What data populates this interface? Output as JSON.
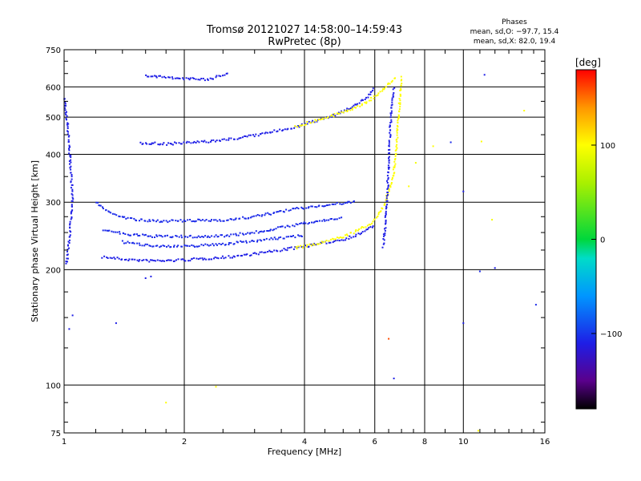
{
  "title": {
    "line1": "Tromsø 20121027 14:58:00–14:59:43",
    "line2": "RwPretec (8p)"
  },
  "stats": {
    "heading": "Phases",
    "line_o": "mean, sd,O: −97.7, 15.4",
    "line_x": "mean, sd,X:  82.0, 19.4"
  },
  "colorbar": {
    "unit_label": "[deg]",
    "ticks": [
      {
        "label": "100",
        "value": 100
      },
      {
        "label": "0",
        "value": 0
      },
      {
        "label": "−100",
        "value": -100
      }
    ],
    "range": [
      -180,
      180
    ]
  },
  "chart_data": {
    "type": "scatter",
    "title": "Tromsø 20121027 14:58:00–14:59:43",
    "subtitle": "RwPretec (8p)",
    "xlabel": "Frequency [MHz]",
    "ylabel": "Stationary phase Virtual Height [km]",
    "x_scale": "log",
    "y_scale": "log",
    "xlim": [
      1,
      16
    ],
    "ylim": [
      75,
      750
    ],
    "grid": true,
    "x_ticks": [
      {
        "label": "1",
        "value": 1
      },
      {
        "label": "2",
        "value": 2
      },
      {
        "label": "4",
        "value": 4
      },
      {
        "label": "6",
        "value": 6
      },
      {
        "label": "8",
        "value": 8
      },
      {
        "label": "10",
        "value": 10
      },
      {
        "label": "16",
        "value": 16
      }
    ],
    "y_ticks": [
      {
        "label": "75",
        "value": 75
      },
      {
        "label": "100",
        "value": 100
      },
      {
        "label": "200",
        "value": 200
      },
      {
        "label": "300",
        "value": 300
      },
      {
        "label": "400",
        "value": 400
      },
      {
        "label": "500",
        "value": 500
      },
      {
        "label": "600",
        "value": 600
      },
      {
        "label": "750",
        "value": 750
      }
    ],
    "traces": [
      {
        "phase": -110,
        "points": [
          [
            1.25,
            216
          ],
          [
            1.4,
            213
          ],
          [
            1.6,
            211
          ],
          [
            1.8,
            211
          ],
          [
            2.0,
            212
          ],
          [
            2.3,
            214
          ],
          [
            2.6,
            216
          ],
          [
            3.0,
            220
          ],
          [
            3.4,
            224
          ],
          [
            3.8,
            228
          ],
          [
            4.2,
            232
          ],
          [
            4.6,
            236
          ],
          [
            5.0,
            240
          ],
          [
            5.4,
            246
          ],
          [
            5.8,
            256
          ],
          [
            6.0,
            262
          ]
        ]
      },
      {
        "phase": 100,
        "points": [
          [
            3.8,
            228
          ],
          [
            4.2,
            232
          ],
          [
            4.6,
            238
          ],
          [
            5.0,
            244
          ],
          [
            5.4,
            252
          ],
          [
            5.8,
            262
          ],
          [
            6.1,
            275
          ],
          [
            6.3,
            290
          ],
          [
            6.5,
            320
          ],
          [
            6.7,
            360
          ],
          [
            6.8,
            420
          ],
          [
            6.9,
            520
          ],
          [
            7.0,
            640
          ]
        ]
      },
      {
        "phase": -105,
        "points": [
          [
            1.2,
            300
          ],
          [
            1.3,
            282
          ],
          [
            1.45,
            272
          ],
          [
            1.6,
            268
          ],
          [
            1.8,
            268
          ],
          [
            2.0,
            268
          ],
          [
            2.3,
            269
          ],
          [
            2.6,
            270
          ],
          [
            3.0,
            275
          ],
          [
            3.4,
            282
          ],
          [
            3.8,
            288
          ],
          [
            4.2,
            292
          ],
          [
            4.6,
            295
          ],
          [
            5.0,
            298
          ],
          [
            5.4,
            300
          ]
        ]
      },
      {
        "phase": -105,
        "points": [
          [
            1.25,
            255
          ],
          [
            1.4,
            248
          ],
          [
            1.6,
            245
          ],
          [
            1.8,
            244
          ],
          [
            2.0,
            244
          ],
          [
            2.3,
            244
          ],
          [
            2.6,
            246
          ],
          [
            3.0,
            250
          ],
          [
            3.4,
            256
          ],
          [
            3.8,
            262
          ],
          [
            4.2,
            266
          ],
          [
            4.6,
            270
          ],
          [
            5.0,
            274
          ]
        ]
      },
      {
        "phase": -105,
        "points": [
          [
            1.4,
            236
          ],
          [
            1.6,
            232
          ],
          [
            1.8,
            230
          ],
          [
            2.0,
            230
          ],
          [
            2.3,
            232
          ],
          [
            2.6,
            234
          ],
          [
            3.0,
            238
          ],
          [
            3.5,
            242
          ],
          [
            4.0,
            246
          ]
        ]
      },
      {
        "phase": -110,
        "points": [
          [
            1.55,
            428
          ],
          [
            1.8,
            426
          ],
          [
            2.0,
            428
          ],
          [
            2.3,
            432
          ],
          [
            2.6,
            438
          ],
          [
            3.0,
            448
          ],
          [
            3.4,
            460
          ],
          [
            3.8,
            472
          ],
          [
            4.2,
            486
          ],
          [
            4.6,
            500
          ],
          [
            5.0,
            518
          ],
          [
            5.4,
            540
          ],
          [
            5.8,
            570
          ],
          [
            6.0,
            600
          ]
        ]
      },
      {
        "phase": 100,
        "points": [
          [
            3.8,
            472
          ],
          [
            4.2,
            488
          ],
          [
            4.6,
            500
          ],
          [
            5.0,
            515
          ],
          [
            5.4,
            532
          ],
          [
            5.8,
            552
          ],
          [
            6.2,
            580
          ],
          [
            6.5,
            610
          ],
          [
            6.8,
            640
          ]
        ]
      },
      {
        "phase": -110,
        "points": [
          [
            6.3,
            230
          ],
          [
            6.4,
            270
          ],
          [
            6.45,
            320
          ],
          [
            6.5,
            380
          ],
          [
            6.55,
            450
          ],
          [
            6.6,
            520
          ],
          [
            6.7,
            600
          ]
        ]
      },
      {
        "phase": -110,
        "points": [
          [
            1.0,
            560
          ],
          [
            1.02,
            480
          ],
          [
            1.03,
            420
          ],
          [
            1.04,
            360
          ],
          [
            1.05,
            310
          ],
          [
            1.04,
            270
          ],
          [
            1.03,
            240
          ],
          [
            1.02,
            215
          ],
          [
            1.01,
            205
          ]
        ]
      },
      {
        "phase": -110,
        "points": [
          [
            1.6,
            640
          ],
          [
            1.8,
            635
          ],
          [
            2.0,
            630
          ],
          [
            2.3,
            628
          ],
          [
            2.6,
            650
          ]
        ]
      }
    ],
    "scatter_points": [
      {
        "x": 7.3,
        "y": 330,
        "phase": 100
      },
      {
        "x": 7.6,
        "y": 380,
        "phase": 95
      },
      {
        "x": 8.4,
        "y": 420,
        "phase": 100
      },
      {
        "x": 9.3,
        "y": 430,
        "phase": -105
      },
      {
        "x": 10.0,
        "y": 320,
        "phase": -110
      },
      {
        "x": 10.0,
        "y": 145,
        "phase": -110
      },
      {
        "x": 11.0,
        "y": 198,
        "phase": -105
      },
      {
        "x": 11.1,
        "y": 432,
        "phase": 100
      },
      {
        "x": 11.3,
        "y": 645,
        "phase": -110
      },
      {
        "x": 11.8,
        "y": 270,
        "phase": 95
      },
      {
        "x": 12.0,
        "y": 202,
        "phase": -110
      },
      {
        "x": 14.2,
        "y": 520,
        "phase": 100
      },
      {
        "x": 15.2,
        "y": 162,
        "phase": -105
      },
      {
        "x": 6.7,
        "y": 104,
        "phase": -110
      },
      {
        "x": 6.5,
        "y": 132,
        "phase": 160
      },
      {
        "x": 1.8,
        "y": 90,
        "phase": 100
      },
      {
        "x": 2.4,
        "y": 99,
        "phase": 100
      },
      {
        "x": 1.6,
        "y": 190,
        "phase": -110
      },
      {
        "x": 1.65,
        "y": 192,
        "phase": -110
      },
      {
        "x": 1.35,
        "y": 145,
        "phase": -110
      },
      {
        "x": 1.05,
        "y": 152,
        "phase": -110
      },
      {
        "x": 1.03,
        "y": 140,
        "phase": -110
      },
      {
        "x": 10.9,
        "y": 76,
        "phase": 100
      }
    ]
  }
}
